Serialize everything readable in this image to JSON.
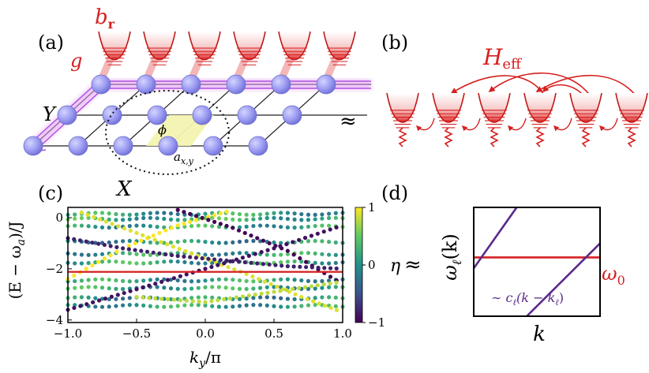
{
  "panels": {
    "a": {
      "label": "(a)",
      "b_r": "b",
      "b_r_sub": "r",
      "g": "g",
      "Y": "Y",
      "X": "X",
      "phi": "ϕ",
      "a_xy": "a",
      "a_xy_sub": "x,y"
    },
    "approx": "≈",
    "b": {
      "label": "(b)",
      "H": "H",
      "H_sub": "eff"
    },
    "c": {
      "label": "(c)",
      "ylabel": "(E − ω",
      "ylabel_sub": "a",
      "ylabel_end": ")/J",
      "xlabel": "k",
      "xlabel_sub": "y",
      "xlabel_end": "/π",
      "colorbar_label": "η"
    },
    "d": {
      "label": "(d)",
      "ylabel": "ω",
      "ylabel_sub": "ℓ",
      "ylabel_end": "(k)",
      "xlabel": "k",
      "omega0": "ω",
      "omega0_sub": "0",
      "annotation": "∼ c",
      "annotation_sub": "ℓ",
      "annotation_end": "(k − k",
      "annotation_sub2": "ℓ",
      "annotation_end2": ")"
    }
  },
  "colors": {
    "red": "#d62020",
    "purple": "#5a2a8a",
    "node": "#9c9cf0",
    "glow": "#d98af0"
  },
  "chart_data": [
    {
      "type": "scatter",
      "title": "",
      "xlabel": "k_y/π",
      "ylabel": "(E − ω_a)/J",
      "xlim": [
        -1.0,
        1.0
      ],
      "ylim": [
        -4.1,
        0.4
      ],
      "xticks": [
        "−1.0",
        "−0.5",
        "0.0",
        "0.5",
        "1.0"
      ],
      "xtick_values": [
        -1.0,
        -0.5,
        0.0,
        0.5,
        1.0
      ],
      "yticks": [
        "0",
        "−2",
        "−4"
      ],
      "ytick_values": [
        0,
        -2,
        -4
      ],
      "colorbar": {
        "label": "η",
        "min": -1,
        "max": 1,
        "ticks": [
          "1",
          "0",
          "−1"
        ],
        "tick_values": [
          1,
          0,
          -1
        ]
      },
      "reference_line": {
        "y": -2.12,
        "color": "#d62020"
      },
      "flat_bands": [
        {
          "y": 0.15,
          "eta": 0.1
        },
        {
          "y": -0.05,
          "eta": 0.2
        },
        {
          "y": -0.35,
          "eta": 0.15
        },
        {
          "y": -0.95,
          "eta": 0.0
        },
        {
          "y": -1.42,
          "eta": 0.1
        },
        {
          "y": -1.75,
          "eta": 0.15
        },
        {
          "y": -2.45,
          "eta": 0.1
        },
        {
          "y": -2.75,
          "eta": 0.15
        },
        {
          "y": -3.15,
          "eta": 0.0
        },
        {
          "y": -3.45,
          "eta": 0.1
        }
      ],
      "dispersive_bands": [
        {
          "points": [
            [
              -1.0,
              -2.4
            ],
            [
              -0.6,
              -1.2
            ],
            [
              -0.2,
              -0.3
            ],
            [
              0.2,
              0.3
            ]
          ],
          "eta": 1.0
        },
        {
          "points": [
            [
              -0.2,
              0.3
            ],
            [
              0.2,
              -0.4
            ],
            [
              0.6,
              -1.3
            ],
            [
              1.0,
              -2.6
            ]
          ],
          "eta": -1.0
        },
        {
          "points": [
            [
              -0.9,
              0.2
            ],
            [
              -0.5,
              -0.6
            ],
            [
              -0.1,
              -1.4
            ],
            [
              0.3,
              -2.2
            ],
            [
              0.7,
              -3.1
            ],
            [
              1.0,
              -3.7
            ]
          ],
          "eta": 0.9
        },
        {
          "points": [
            [
              -1.0,
              -3.6
            ],
            [
              -0.5,
              -2.8
            ],
            [
              0.0,
              -2.0
            ],
            [
              0.5,
              -1.2
            ],
            [
              1.0,
              -0.3
            ]
          ],
          "eta": -0.9
        },
        {
          "points": [
            [
              -1.0,
              -0.8
            ],
            [
              -0.6,
              -1.2
            ],
            [
              -0.2,
              -1.5
            ],
            [
              0.2,
              -1.7
            ],
            [
              0.6,
              -1.9
            ],
            [
              1.0,
              -2.0
            ]
          ],
          "eta": -0.8
        },
        {
          "points": [
            [
              -0.5,
              -3.1
            ],
            [
              0.0,
              -3.3
            ],
            [
              0.5,
              -2.9
            ],
            [
              1.0,
              -2.5
            ]
          ],
          "eta": 0.8
        }
      ]
    },
    {
      "type": "line",
      "title": "",
      "xlabel": "k",
      "ylabel": "ω_ℓ(k)",
      "series": [
        {
          "name": "ω_0",
          "x": [
            0,
            1
          ],
          "y": [
            0.54,
            0.54
          ],
          "color": "#d62020"
        },
        {
          "x": [
            0,
            0.34
          ],
          "y": [
            0.44,
            1.0
          ],
          "color": "#5a2a8a"
        },
        {
          "x": [
            0.42,
            1.0
          ],
          "y": [
            0.0,
            0.67
          ],
          "color": "#5a2a8a"
        }
      ]
    }
  ]
}
